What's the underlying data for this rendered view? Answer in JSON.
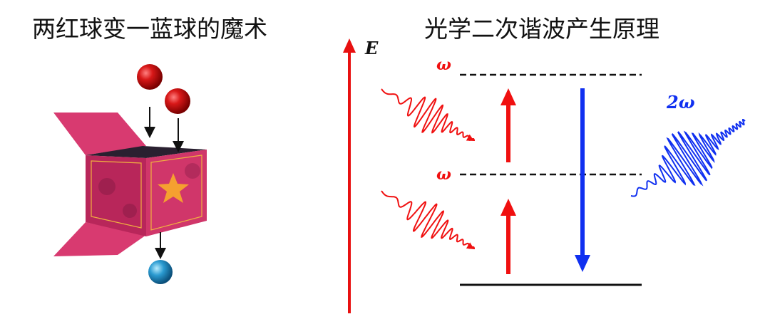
{
  "left": {
    "title": "两红球变一蓝球的魔术"
  },
  "right": {
    "title": "光学二次谐波产生原理",
    "axis_label": "E",
    "photon_labels": [
      "ω",
      "ω",
      "2ω"
    ]
  }
}
